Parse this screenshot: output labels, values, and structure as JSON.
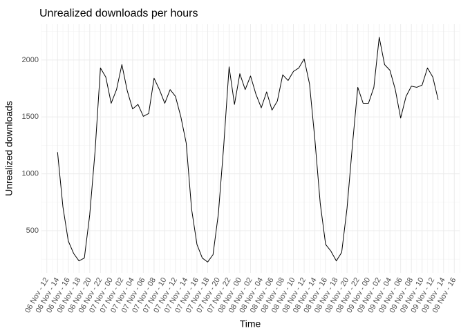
{
  "chart_data": {
    "type": "line",
    "title": "Unrealized downloads per hours",
    "x_label": "Time",
    "y_label": "Unrealized downloads",
    "color": "#000000",
    "grid": true,
    "x": [
      "06 Nov - 14",
      "06 Nov - 15",
      "06 Nov - 16",
      "06 Nov - 17",
      "06 Nov - 18",
      "06 Nov - 19",
      "06 Nov - 20",
      "06 Nov - 21",
      "06 Nov - 22",
      "06 Nov - 23",
      "07 Nov - 00",
      "07 Nov - 01",
      "07 Nov - 02",
      "07 Nov - 03",
      "07 Nov - 04",
      "07 Nov - 05",
      "07 Nov - 06",
      "07 Nov - 07",
      "07 Nov - 08",
      "07 Nov - 09",
      "07 Nov - 10",
      "07 Nov - 11",
      "07 Nov - 12",
      "07 Nov - 13",
      "07 Nov - 14",
      "07 Nov - 15",
      "07 Nov - 16",
      "07 Nov - 17",
      "07 Nov - 18",
      "07 Nov - 19",
      "07 Nov - 20",
      "07 Nov - 21",
      "07 Nov - 22",
      "07 Nov - 23",
      "08 Nov - 00",
      "08 Nov - 01",
      "08 Nov - 02",
      "08 Nov - 03",
      "08 Nov - 04",
      "08 Nov - 05",
      "08 Nov - 06",
      "08 Nov - 07",
      "08 Nov - 08",
      "08 Nov - 09",
      "08 Nov - 10",
      "08 Nov - 11",
      "08 Nov - 12",
      "08 Nov - 13",
      "08 Nov - 14",
      "08 Nov - 15",
      "08 Nov - 16",
      "08 Nov - 17",
      "08 Nov - 18",
      "08 Nov - 19",
      "08 Nov - 20",
      "08 Nov - 21",
      "08 Nov - 22",
      "08 Nov - 23",
      "09 Nov - 00",
      "09 Nov - 01",
      "09 Nov - 02",
      "09 Nov - 03",
      "09 Nov - 04",
      "09 Nov - 05",
      "09 Nov - 06",
      "09 Nov - 07",
      "09 Nov - 08",
      "09 Nov - 09",
      "09 Nov - 10",
      "09 Nov - 11",
      "09 Nov - 12",
      "09 Nov - 13"
    ],
    "values": [
      1190,
      710,
      410,
      300,
      235,
      260,
      640,
      1200,
      1930,
      1850,
      1620,
      1740,
      1960,
      1730,
      1570,
      1610,
      1505,
      1530,
      1840,
      1740,
      1620,
      1740,
      1680,
      1500,
      1270,
      690,
      380,
      260,
      225,
      290,
      650,
      1250,
      1940,
      1610,
      1880,
      1740,
      1860,
      1700,
      1580,
      1720,
      1560,
      1640,
      1870,
      1820,
      1900,
      1930,
      2010,
      1790,
      1300,
      740,
      380,
      320,
      235,
      310,
      700,
      1250,
      1760,
      1620,
      1620,
      1760,
      2200,
      1960,
      1910,
      1740,
      1490,
      1680,
      1770,
      1760,
      1780,
      1930,
      1850,
      1650
    ],
    "xlim": [
      "06 Nov - 11",
      "09 Nov - 17"
    ],
    "xticks": [
      "06 Nov - 12",
      "06 Nov - 14",
      "06 Nov - 16",
      "06 Nov - 18",
      "06 Nov - 20",
      "06 Nov - 22",
      "07 Nov - 00",
      "07 Nov - 02",
      "07 Nov - 04",
      "07 Nov - 06",
      "07 Nov - 08",
      "07 Nov - 10",
      "07 Nov - 12",
      "07 Nov - 14",
      "07 Nov - 16",
      "07 Nov - 18",
      "07 Nov - 20",
      "07 Nov - 22",
      "08 Nov - 00",
      "08 Nov - 02",
      "08 Nov - 04",
      "08 Nov - 06",
      "08 Nov - 08",
      "08 Nov - 10",
      "08 Nov - 12",
      "08 Nov - 14",
      "08 Nov - 16",
      "08 Nov - 18",
      "08 Nov - 20",
      "08 Nov - 22",
      "09 Nov - 00",
      "09 Nov - 02",
      "09 Nov - 04",
      "09 Nov - 06",
      "09 Nov - 08",
      "09 Nov - 10",
      "09 Nov - 12",
      "09 Nov - 14",
      "09 Nov - 16"
    ],
    "ylim": [
      130,
      2315
    ],
    "yticks": [
      500,
      1000,
      1500,
      2000
    ]
  }
}
